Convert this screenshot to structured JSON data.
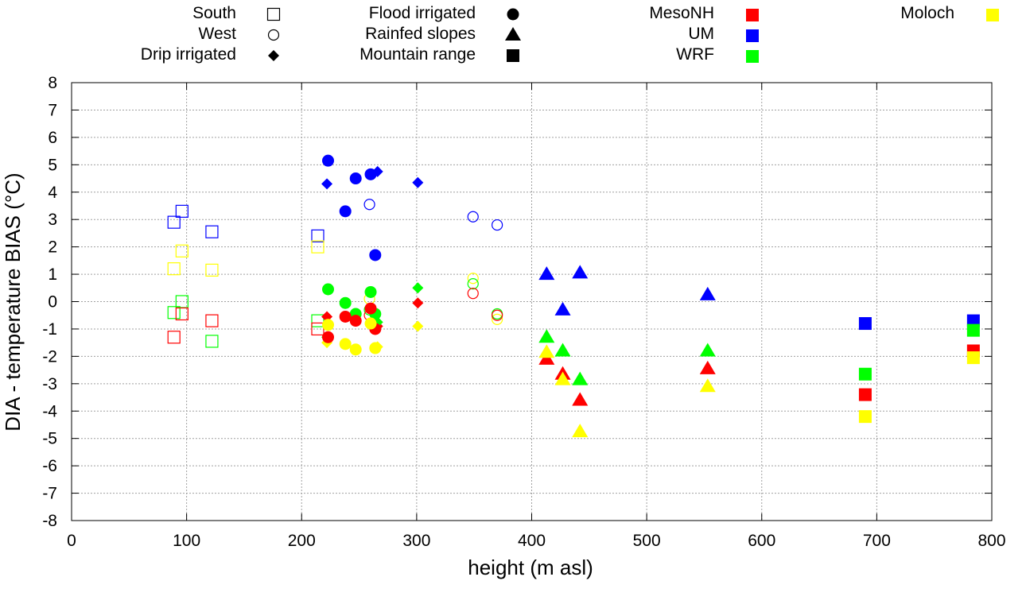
{
  "chart_data": {
    "type": "scatter",
    "title": "",
    "xlabel": "height (m asl)",
    "ylabel": "DIA - temperature BIAS (°C)",
    "xlim": [
      0,
      800
    ],
    "ylim": [
      -8,
      8
    ],
    "x_ticks": [
      0,
      100,
      200,
      300,
      400,
      500,
      600,
      700,
      800
    ],
    "y_ticks": [
      -8,
      -7,
      -6,
      -5,
      -4,
      -3,
      -2,
      -1,
      0,
      1,
      2,
      3,
      4,
      5,
      6,
      7,
      8
    ],
    "grid": true,
    "legend_placement": "top, above plot",
    "shape_legend": [
      {
        "key": "south",
        "label": "South",
        "marker": "square-open"
      },
      {
        "key": "west",
        "label": "West",
        "marker": "circle-open"
      },
      {
        "key": "drip",
        "label": "Drip irrigated",
        "marker": "diamond"
      },
      {
        "key": "flood",
        "label": "Flood irrigated",
        "marker": "circle"
      },
      {
        "key": "rainfed",
        "label": "Rainfed slopes",
        "marker": "triangle"
      },
      {
        "key": "mountain",
        "label": "Mountain range",
        "marker": "square"
      }
    ],
    "color_legend": [
      {
        "key": "mesonh",
        "label": "MesoNH",
        "color": "#ff0000"
      },
      {
        "key": "um",
        "label": "UM",
        "color": "#0000ff"
      },
      {
        "key": "wrf",
        "label": "WRF",
        "color": "#00ff00"
      },
      {
        "key": "moloch",
        "label": "Moloch",
        "color": "#ffff00"
      }
    ],
    "series": [
      {
        "model": "um",
        "region": "south",
        "points": [
          [
            89,
            2.9
          ],
          [
            96,
            3.3
          ],
          [
            122,
            2.55
          ],
          [
            214,
            2.4
          ]
        ]
      },
      {
        "model": "moloch",
        "region": "south",
        "points": [
          [
            89,
            1.2
          ],
          [
            96,
            1.85
          ],
          [
            122,
            1.15
          ],
          [
            214,
            2.0
          ]
        ]
      },
      {
        "model": "wrf",
        "region": "south",
        "points": [
          [
            89,
            -0.4
          ],
          [
            96,
            0.0
          ],
          [
            122,
            -1.45
          ],
          [
            214,
            -0.7
          ]
        ]
      },
      {
        "model": "mesonh",
        "region": "south",
        "points": [
          [
            89,
            -1.3
          ],
          [
            96,
            -0.45
          ],
          [
            122,
            -0.7
          ],
          [
            214,
            -1.0
          ]
        ]
      },
      {
        "model": "um",
        "region": "west",
        "points": [
          [
            259,
            3.55
          ],
          [
            349,
            3.1
          ],
          [
            370,
            2.8
          ]
        ]
      },
      {
        "model": "moloch",
        "region": "west",
        "points": [
          [
            259,
            0.1
          ],
          [
            349,
            0.85
          ],
          [
            370,
            -0.65
          ]
        ]
      },
      {
        "model": "wrf",
        "region": "west",
        "points": [
          [
            259,
            -0.3
          ],
          [
            349,
            0.65
          ],
          [
            370,
            -0.45
          ]
        ]
      },
      {
        "model": "mesonh",
        "region": "west",
        "points": [
          [
            259,
            -0.5
          ],
          [
            349,
            0.3
          ],
          [
            370,
            -0.5
          ]
        ]
      },
      {
        "model": "um",
        "region": "drip",
        "points": [
          [
            222,
            4.3
          ],
          [
            266,
            4.75
          ],
          [
            301,
            4.35
          ]
        ]
      },
      {
        "model": "mesonh",
        "region": "drip",
        "points": [
          [
            222,
            -0.55
          ],
          [
            266,
            -0.9
          ],
          [
            301,
            -0.05
          ]
        ]
      },
      {
        "model": "wrf",
        "region": "drip",
        "points": [
          [
            222,
            -1.3
          ],
          [
            266,
            -0.75
          ],
          [
            301,
            0.5
          ]
        ]
      },
      {
        "model": "moloch",
        "region": "drip",
        "points": [
          [
            222,
            -1.5
          ],
          [
            266,
            -1.65
          ],
          [
            301,
            -0.9
          ]
        ]
      },
      {
        "model": "um",
        "region": "flood",
        "points": [
          [
            223,
            5.15
          ],
          [
            238,
            3.3
          ],
          [
            247,
            4.5
          ],
          [
            260,
            4.65
          ],
          [
            264,
            1.7
          ]
        ]
      },
      {
        "model": "wrf",
        "region": "flood",
        "points": [
          [
            223,
            0.45
          ],
          [
            238,
            -0.05
          ],
          [
            247,
            -0.45
          ],
          [
            260,
            0.35
          ],
          [
            264,
            -0.45
          ]
        ]
      },
      {
        "model": "mesonh",
        "region": "flood",
        "points": [
          [
            223,
            -1.3
          ],
          [
            238,
            -0.55
          ],
          [
            247,
            -0.7
          ],
          [
            260,
            -0.25
          ],
          [
            264,
            -1.0
          ]
        ]
      },
      {
        "model": "moloch",
        "region": "flood",
        "points": [
          [
            223,
            -0.85
          ],
          [
            238,
            -1.55
          ],
          [
            247,
            -1.75
          ],
          [
            260,
            -0.8
          ],
          [
            264,
            -1.7
          ]
        ]
      },
      {
        "model": "um",
        "region": "rainfed",
        "points": [
          [
            413,
            1.0
          ],
          [
            427,
            -0.3
          ],
          [
            442,
            1.05
          ],
          [
            553,
            0.25
          ]
        ]
      },
      {
        "model": "wrf",
        "region": "rainfed",
        "points": [
          [
            413,
            -1.3
          ],
          [
            427,
            -1.8
          ],
          [
            442,
            -2.85
          ],
          [
            553,
            -1.8
          ]
        ]
      },
      {
        "model": "mesonh",
        "region": "rainfed",
        "points": [
          [
            413,
            -2.1
          ],
          [
            427,
            -2.65
          ],
          [
            442,
            -3.6
          ],
          [
            553,
            -2.45
          ]
        ]
      },
      {
        "model": "moloch",
        "region": "rainfed",
        "points": [
          [
            413,
            -1.85
          ],
          [
            427,
            -2.85
          ],
          [
            442,
            -4.75
          ],
          [
            553,
            -3.1
          ]
        ]
      },
      {
        "model": "um",
        "region": "mountain",
        "points": [
          [
            690,
            -0.8
          ],
          [
            784,
            -0.7
          ]
        ]
      },
      {
        "model": "wrf",
        "region": "mountain",
        "points": [
          [
            690,
            -2.65
          ],
          [
            784,
            -1.05
          ]
        ]
      },
      {
        "model": "mesonh",
        "region": "mountain",
        "points": [
          [
            690,
            -3.4
          ],
          [
            784,
            -1.8
          ]
        ]
      },
      {
        "model": "moloch",
        "region": "mountain",
        "points": [
          [
            690,
            -4.2
          ],
          [
            784,
            -2.05
          ]
        ]
      }
    ]
  }
}
